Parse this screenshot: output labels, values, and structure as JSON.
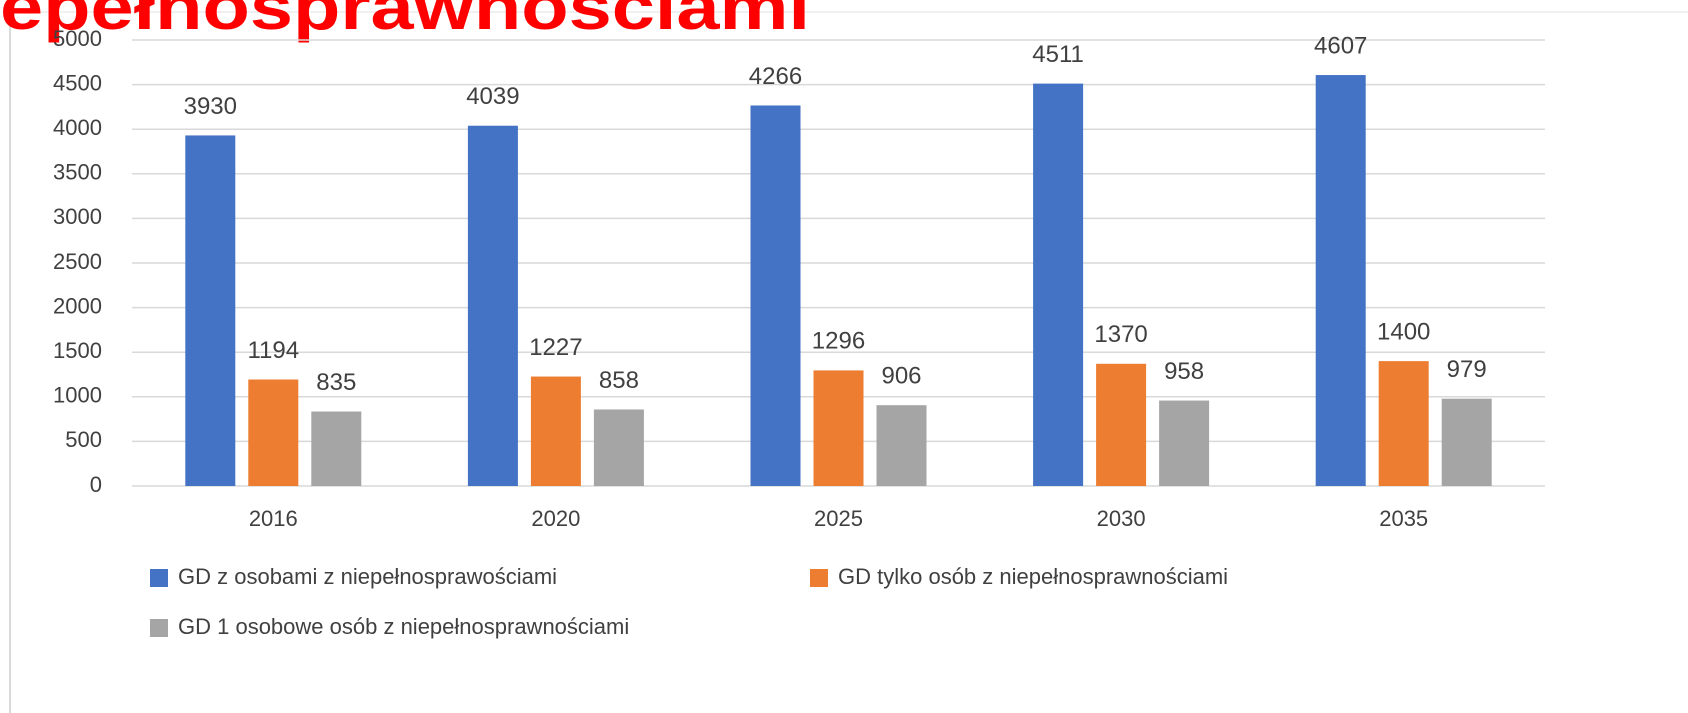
{
  "chart_data": {
    "type": "bar",
    "title": "epełnosprawnościami",
    "categories": [
      "2016",
      "2020",
      "2025",
      "2030",
      "2035"
    ],
    "series": [
      {
        "name": "GD z osobami z niepełnosprawościami",
        "color": "#4472c4",
        "values": [
          3930,
          4039,
          4266,
          4511,
          4607
        ]
      },
      {
        "name": "GD tylko osób z niepełnosprawnościami",
        "color": "#ed7d31",
        "values": [
          1194,
          1227,
          1296,
          1370,
          1400
        ]
      },
      {
        "name": "GD 1 osobowe osób z niepełnosprawnościami",
        "color": "#a5a5a5",
        "values": [
          835,
          858,
          906,
          958,
          979
        ]
      }
    ],
    "ylim": [
      0,
      5000
    ],
    "yticks": [
      0,
      500,
      1000,
      1500,
      2000,
      2500,
      3000,
      3500,
      4000,
      4500,
      5000
    ],
    "grid": true,
    "legend": "bottom"
  }
}
